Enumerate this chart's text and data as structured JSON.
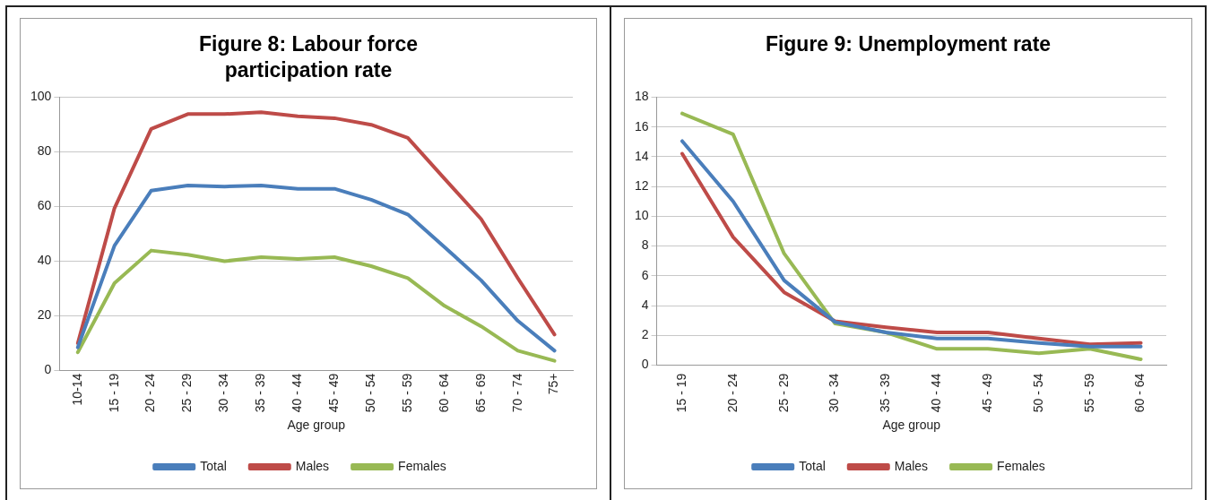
{
  "chart_data": [
    {
      "type": "line",
      "title": "Figure 8: Labour force participation rate",
      "xlabel": "Age group",
      "categories": [
        "10-14",
        "15 - 19",
        "20 - 24",
        "25 - 29",
        "30 - 34",
        "35 - 39",
        "40 - 44",
        "45 - 49",
        "50 - 54",
        "55 - 59",
        "60 - 64",
        "65 - 69",
        "70 - 74",
        "75+"
      ],
      "series": [
        {
          "name": "Total",
          "color": "#4a7ebb",
          "values": [
            8.5,
            45.7,
            65.8,
            67.7,
            67.3,
            67.7,
            66.5,
            66.5,
            62.5,
            57.1,
            45.2,
            33,
            18.2,
            7.3
          ]
        },
        {
          "name": "Males",
          "color": "#be4b48",
          "values": [
            10,
            59.4,
            88.4,
            93.8,
            93.8,
            94.5,
            93,
            92.3,
            89.9,
            85.1,
            70.2,
            55.4,
            33.8,
            13.2
          ]
        },
        {
          "name": "Females",
          "color": "#98b954",
          "values": [
            6.7,
            32,
            43.9,
            42.4,
            40,
            41.5,
            40.8,
            41.5,
            38.2,
            33.8,
            23.7,
            16.2,
            7.3,
            3.6
          ]
        }
      ],
      "ylim": [
        0,
        100
      ],
      "yticks": [
        0,
        20,
        40,
        60,
        80,
        100
      ],
      "grid": "y",
      "legend": "bottom",
      "marker": "none"
    },
    {
      "type": "line",
      "title": "Figure 9: Unemployment rate",
      "xlabel": "Age group",
      "categories": [
        "15 - 19",
        "20 - 24",
        "25 - 29",
        "30 - 34",
        "35 - 39",
        "40 - 44",
        "45 - 49",
        "50 - 54",
        "55 - 59",
        "60 - 64"
      ],
      "series": [
        {
          "name": "Total",
          "color": "#4a7ebb",
          "values": [
            15.05,
            11,
            5.7,
            2.9,
            2.2,
            1.8,
            1.8,
            1.5,
            1.25,
            1.25
          ]
        },
        {
          "name": "Males",
          "color": "#be4b48",
          "values": [
            14.2,
            8.6,
            4.9,
            2.95,
            2.55,
            2.2,
            2.2,
            1.8,
            1.4,
            1.5
          ]
        },
        {
          "name": "Females",
          "color": "#98b954",
          "values": [
            16.9,
            15.5,
            7.5,
            2.8,
            2.2,
            1.1,
            1.1,
            0.8,
            1.1,
            0.4
          ]
        }
      ],
      "ylim": [
        0,
        18
      ],
      "yticks": [
        0,
        2,
        4,
        6,
        8,
        10,
        12,
        14,
        16,
        18
      ],
      "grid": "y",
      "legend": "bottom",
      "marker": "none"
    }
  ]
}
